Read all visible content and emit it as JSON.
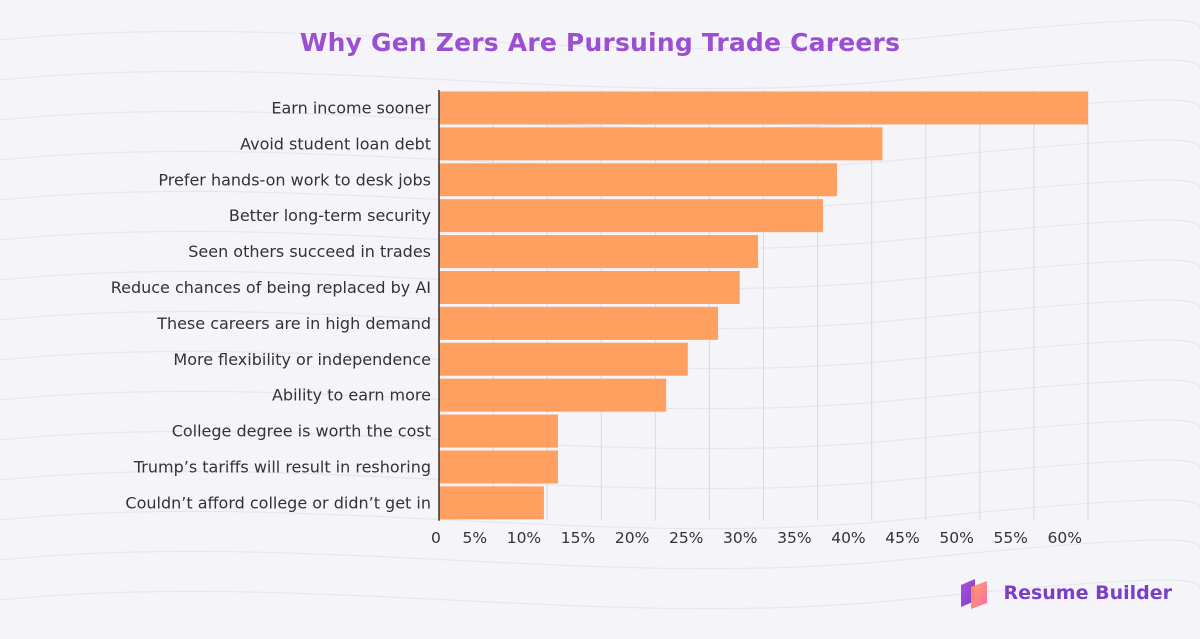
{
  "chart_data": {
    "type": "bar",
    "orientation": "horizontal",
    "title": "Why Gen Zers Are Pursuing Trade Careers",
    "categories": [
      "Earn income sooner",
      "Avoid student loan debt",
      "Prefer hands-on work to desk jobs",
      "Better long-term security",
      "Seen others succeed in trades",
      "Reduce chances of being replaced by AI",
      "These careers are in high demand",
      "More flexibility or independence",
      "Ability to earn more",
      "College degree is worth the cost",
      "Trump’s tariffs will result in reshoring",
      "Couldn’t afford college or didn’t get in"
    ],
    "values": [
      60,
      41,
      36.8,
      35.5,
      29.5,
      27.8,
      25.8,
      23,
      21,
      11,
      11,
      9.7
    ],
    "xlim": [
      0,
      60
    ],
    "xticks": [
      0,
      5,
      10,
      15,
      20,
      25,
      30,
      35,
      40,
      45,
      50,
      55,
      60
    ],
    "xtick_labels": [
      "0",
      "5%",
      "10%",
      "15%",
      "20%",
      "25%",
      "30%",
      "35%",
      "40%",
      "45%",
      "50%",
      "55%",
      "60%"
    ],
    "xlabel": "",
    "ylabel": "",
    "grid": "vertical",
    "bar_color": "#ffa060"
  },
  "brand": {
    "name": "Resume Builder",
    "logo_icon": "resume-builder-logo-icon",
    "color": "#7a3fc4"
  },
  "colors": {
    "title": "#9b4fd1",
    "gridline": "#d9d9e3",
    "axis": "#333333",
    "background": "#f5f4f9"
  }
}
